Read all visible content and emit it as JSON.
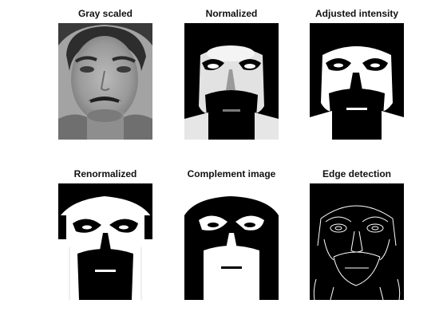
{
  "figure": {
    "background_color": "#ffffff",
    "panels": [
      {
        "title": "Gray scaled",
        "image_kind": "grayscale",
        "alt": "face-grayscale"
      },
      {
        "title": "Normalized",
        "image_kind": "normalized",
        "alt": "face-normalized"
      },
      {
        "title": "Adjusted intensity",
        "image_kind": "adjusted-intensity",
        "alt": "face-adjusted-intensity"
      },
      {
        "title": "Renormalized",
        "image_kind": "renormalized",
        "alt": "face-renormalized"
      },
      {
        "title": "Complement image",
        "image_kind": "complement",
        "alt": "face-complement"
      },
      {
        "title": "Edge detection",
        "image_kind": "edge-detection",
        "alt": "face-edges"
      }
    ]
  }
}
